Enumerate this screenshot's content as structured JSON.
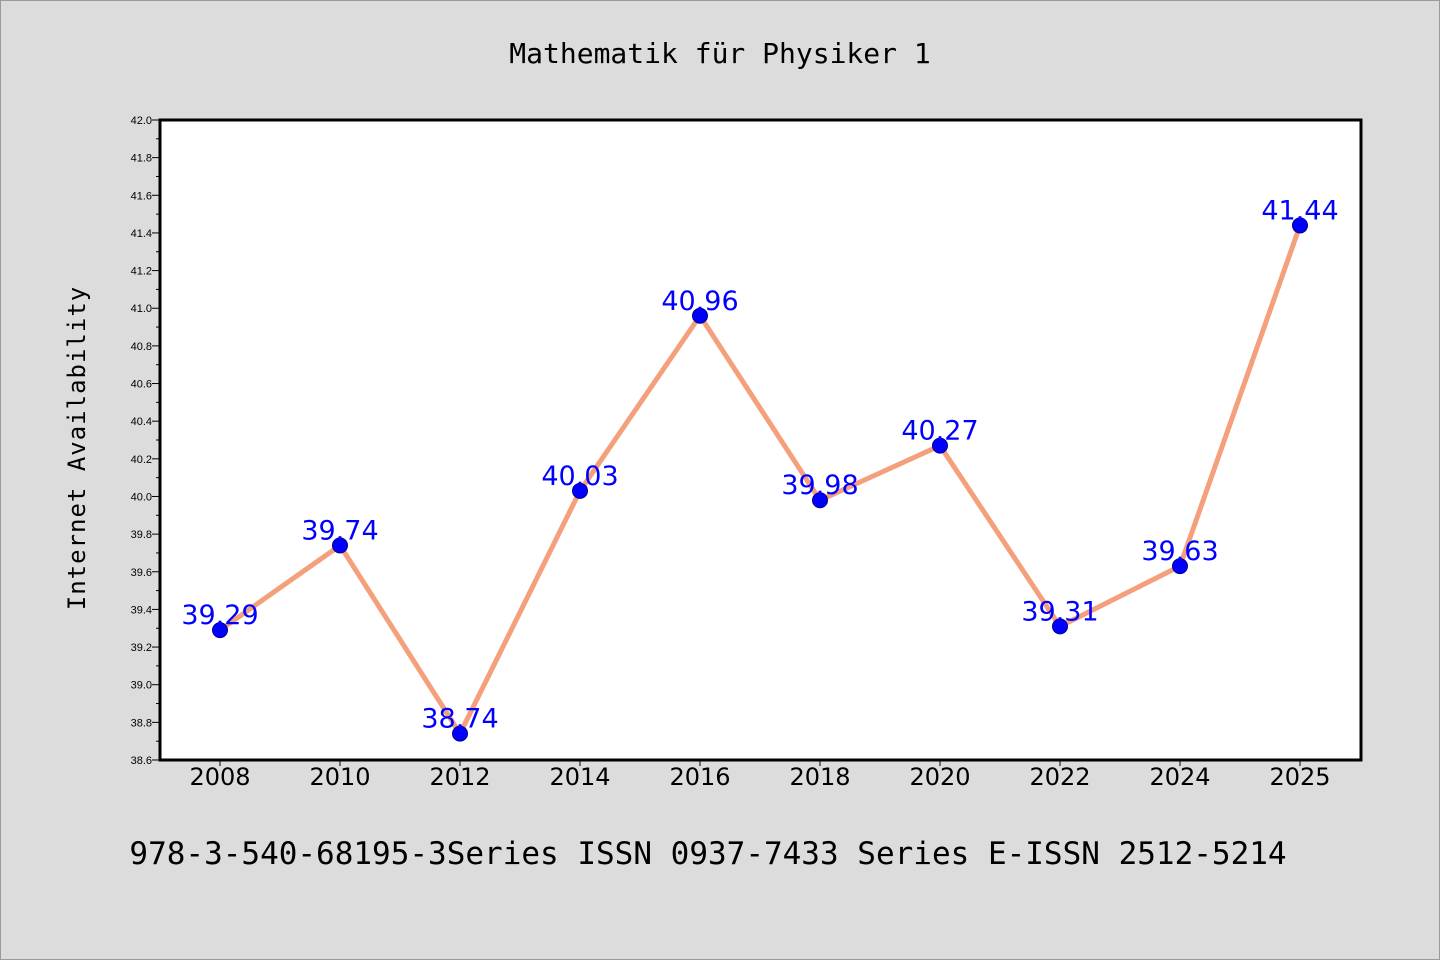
{
  "colors": {
    "background": "#dcdcdc",
    "plot_background": "#ffffff",
    "line": "#f4a07c",
    "marker": "#0000ff",
    "marker_edge": "#00008b",
    "data_label": "#0000ff",
    "axes": "#000000"
  },
  "chart_data": {
    "type": "line",
    "title": "Mathematik für Physiker 1",
    "footer": "978-3-540-68195-3Series ISSN 0937-7433 Series E-ISSN 2512-5214",
    "xlabel": "",
    "ylabel": "Internet Availability",
    "categories": [
      "2008",
      "2010",
      "2012",
      "2014",
      "2016",
      "2018",
      "2020",
      "2022",
      "2024",
      "2025"
    ],
    "values": [
      39.29,
      39.74,
      38.74,
      40.03,
      40.96,
      39.98,
      40.27,
      39.31,
      39.63,
      41.44
    ],
    "data_labels": [
      "39.29",
      "39.74",
      "38.74",
      "40.03",
      "40.96",
      "39.98",
      "40.27",
      "39.31",
      "39.63",
      "41.44"
    ],
    "ylim": [
      38.6,
      42.0
    ],
    "yticks": [
      "38.6",
      "38.8",
      "39.0",
      "39.2",
      "39.4",
      "39.6",
      "39.8",
      "40.0",
      "40.2",
      "40.4",
      "40.6",
      "40.8",
      "41.0",
      "41.2",
      "41.4",
      "41.6",
      "41.8",
      "42.0"
    ],
    "grid": false,
    "legend": "none"
  }
}
